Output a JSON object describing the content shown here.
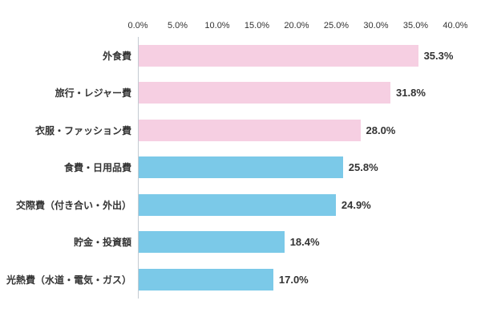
{
  "chart_data": {
    "type": "bar",
    "orientation": "horizontal",
    "title": "",
    "xlabel": "",
    "ylabel": "",
    "xlim": [
      0,
      40
    ],
    "grid": false,
    "legend": null,
    "x_ticks": [
      "0.0%",
      "5.0%",
      "10.0%",
      "15.0%",
      "20.0%",
      "25.0%",
      "30.0%",
      "35.0%",
      "40.0%"
    ],
    "categories": [
      "外食費",
      "旅行・レジャー費",
      "衣服・ファッション費",
      "食費・日用品費",
      "交際費（付き合い・外出）",
      "貯金・投資額",
      "光熱費（水道・電気・ガス）"
    ],
    "values": [
      35.3,
      31.8,
      28.0,
      25.8,
      24.9,
      18.4,
      17.0
    ],
    "value_labels": [
      "35.3%",
      "31.8%",
      "28.0%",
      "25.8%",
      "24.9%",
      "18.4%",
      "17.0%"
    ],
    "bar_colors": [
      "#f6cfe2",
      "#f6cfe2",
      "#f6cfe2",
      "#7bc9e8",
      "#7bc9e8",
      "#7bc9e8",
      "#7bc9e8"
    ]
  },
  "colors": {
    "pink": "#f6cfe2",
    "blue": "#7bc9e8",
    "axis_line": "#c3cbd2",
    "text": "#333333",
    "background": "#ffffff"
  }
}
